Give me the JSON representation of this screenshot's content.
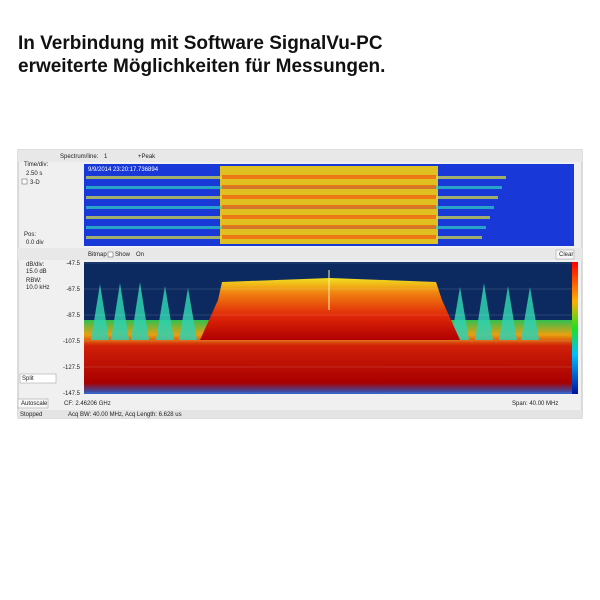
{
  "header": {
    "line1": "In Verbindung mit Software SignalVu-PC",
    "line2": "erweiterte Möglichkeiten für Messungen."
  },
  "spectrogram": {
    "spectrum_line_label": "Spectrum/line:",
    "spectrum_line_value": "1",
    "detector": "+Peak",
    "time_div_label": "Time/div:",
    "time_div_value": "2.50 s",
    "three_d": "3-D",
    "pos_label": "Pos:",
    "pos_value": "0.0 div",
    "timestamp": "9/9/2014 23:20:17.736894"
  },
  "spectrum": {
    "bitmap": "Bitmap",
    "show": "Show",
    "on": "On",
    "clear": "Clear",
    "db_div_label": "dB/div:",
    "db_div_value": "15.0 dB",
    "rbw_label": "RBW:",
    "rbw_value": "10.0 kHz",
    "y_labels": [
      "-47.5",
      "-67.5",
      "-87.5",
      "-107.5",
      "-127.5",
      "-147.5"
    ],
    "mode": "Split",
    "autoscale": "Autoscale",
    "cf": "CF: 2.46206 GHz",
    "span": "Span: 40.00 MHz"
  },
  "status": {
    "state": "Stopped",
    "acq": "Acq BW: 40.00 MHz, Acq Length: 6.628 us"
  }
}
